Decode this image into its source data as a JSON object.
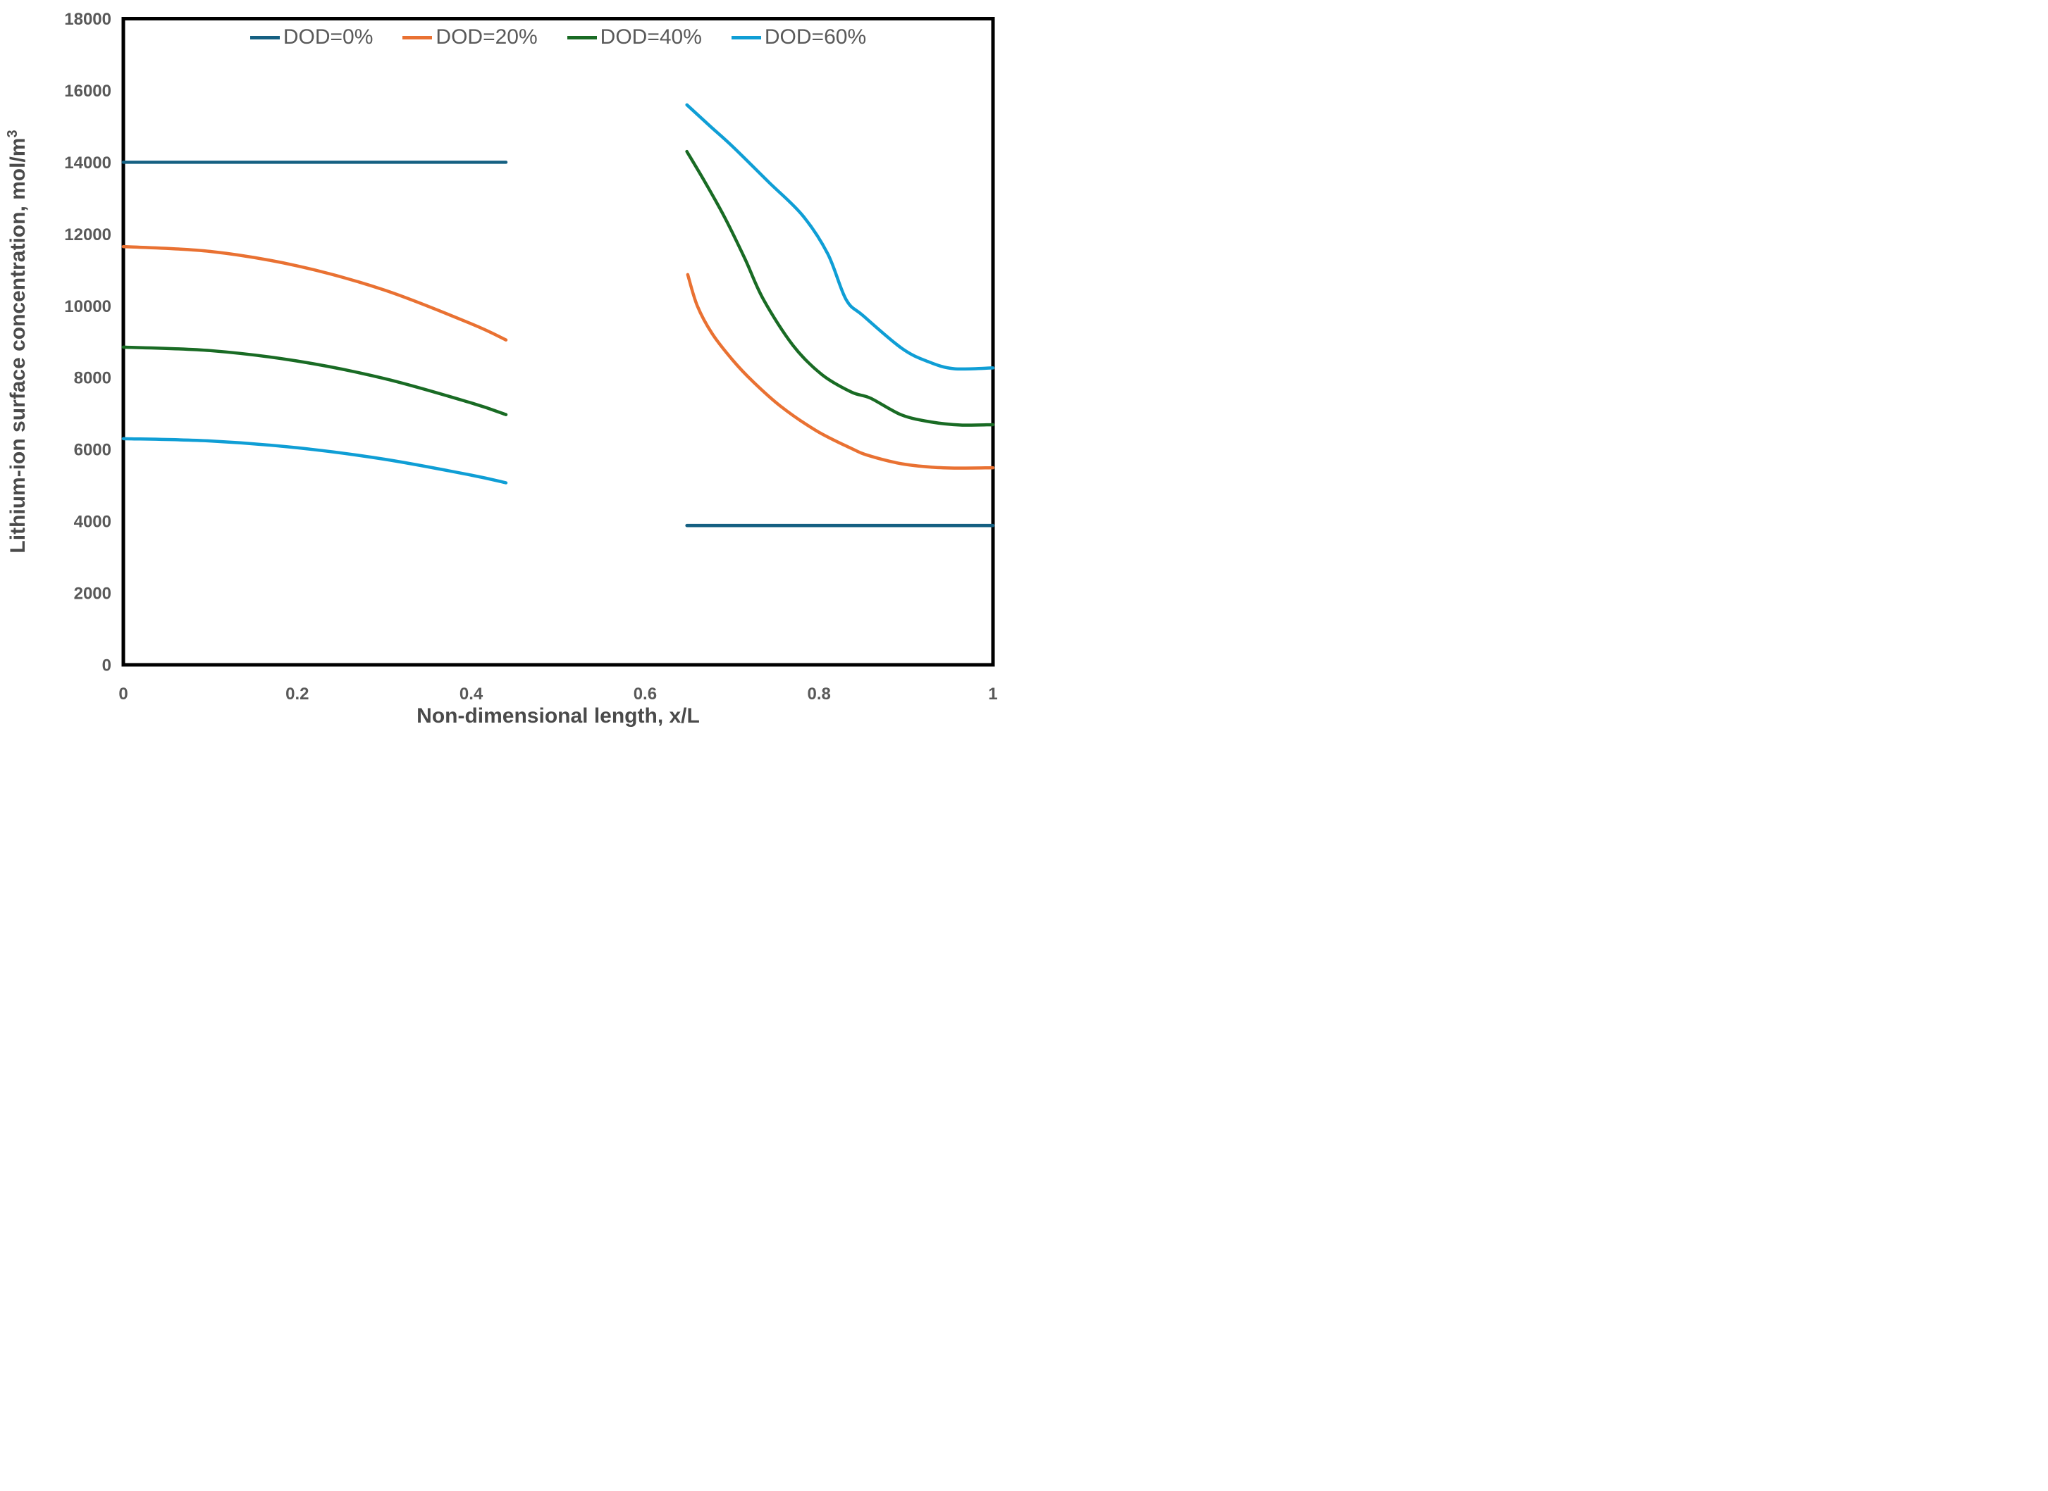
{
  "chart_data": {
    "type": "line",
    "title": "",
    "xlabel": "Non-dimensional length, x/L",
    "ylabel": "Lithium-ion surface concentration, mol/m³",
    "ylabel_main": "Lithium-ion surface concentration, mol/m",
    "ylabel_sup": "3",
    "xlim": [
      0,
      1
    ],
    "ylim": [
      0,
      18000
    ],
    "x_ticks": [
      0,
      0.2,
      0.4,
      0.6,
      0.8,
      1
    ],
    "x_tick_labels": [
      "0",
      "0.2",
      "0.4",
      "0.6",
      "0.8",
      "1"
    ],
    "y_ticks": [
      0,
      2000,
      4000,
      6000,
      8000,
      10000,
      12000,
      14000,
      16000,
      18000
    ],
    "y_tick_labels": [
      "0",
      "2000",
      "4000",
      "6000",
      "8000",
      "10000",
      "12000",
      "14000",
      "16000",
      "18000"
    ],
    "grid": false,
    "legend_position": "top-center",
    "axis_border_color": "#000000",
    "tick_label_color": "#595959",
    "series": [
      {
        "name": "DOD=0%",
        "color": "#156082",
        "segments": [
          [
            [
              0,
              14000
            ],
            [
              0.44,
              14000
            ]
          ],
          [
            [
              0.648,
              3880
            ],
            [
              1,
              3880
            ]
          ]
        ]
      },
      {
        "name": "DOD=20%",
        "color": "#E97132",
        "segments": [
          [
            [
              0,
              11650
            ],
            [
              0.1,
              11516
            ],
            [
              0.2,
              11113
            ],
            [
              0.3,
              10441
            ],
            [
              0.4,
              9501
            ],
            [
              0.44,
              9050
            ]
          ],
          [
            [
              0.649,
              10870
            ],
            [
              0.66,
              10000
            ],
            [
              0.677,
              9230
            ],
            [
              0.701,
              8480
            ],
            [
              0.724,
              7890
            ],
            [
              0.756,
              7200
            ],
            [
              0.797,
              6520
            ],
            [
              0.837,
              6030
            ],
            [
              0.857,
              5830
            ],
            [
              0.895,
              5600
            ],
            [
              0.93,
              5505
            ],
            [
              0.96,
              5480
            ],
            [
              1,
              5490
            ]
          ]
        ]
      },
      {
        "name": "DOD=40%",
        "color": "#196B24",
        "segments": [
          [
            [
              0,
              8850
            ],
            [
              0.1,
              8753
            ],
            [
              0.2,
              8462
            ],
            [
              0.3,
              7976
            ],
            [
              0.4,
              7296
            ],
            [
              0.44,
              6970
            ]
          ],
          [
            [
              0.648,
              14300
            ],
            [
              0.67,
              13400
            ],
            [
              0.692,
              12440
            ],
            [
              0.715,
              11300
            ],
            [
              0.736,
              10180
            ],
            [
              0.77,
              8900
            ],
            [
              0.803,
              8090
            ],
            [
              0.837,
              7600
            ],
            [
              0.859,
              7430
            ],
            [
              0.895,
              6960
            ],
            [
              0.93,
              6760
            ],
            [
              0.963,
              6680
            ],
            [
              1,
              6690
            ]
          ]
        ]
      },
      {
        "name": "DOD=60%",
        "color": "#0F9ED5",
        "segments": [
          [
            [
              0,
              6300
            ],
            [
              0.1,
              6236
            ],
            [
              0.2,
              6046
            ],
            [
              0.3,
              5728
            ],
            [
              0.4,
              5284
            ],
            [
              0.44,
              5070
            ]
          ],
          [
            [
              0.648,
              15600
            ],
            [
              0.675,
              15000
            ],
            [
              0.701,
              14430
            ],
            [
              0.742,
              13450
            ],
            [
              0.781,
              12520
            ],
            [
              0.81,
              11450
            ],
            [
              0.831,
              10180
            ],
            [
              0.851,
              9720
            ],
            [
              0.895,
              8820
            ],
            [
              0.925,
              8450
            ],
            [
              0.955,
              8250
            ],
            [
              1,
              8270
            ]
          ]
        ]
      }
    ]
  }
}
